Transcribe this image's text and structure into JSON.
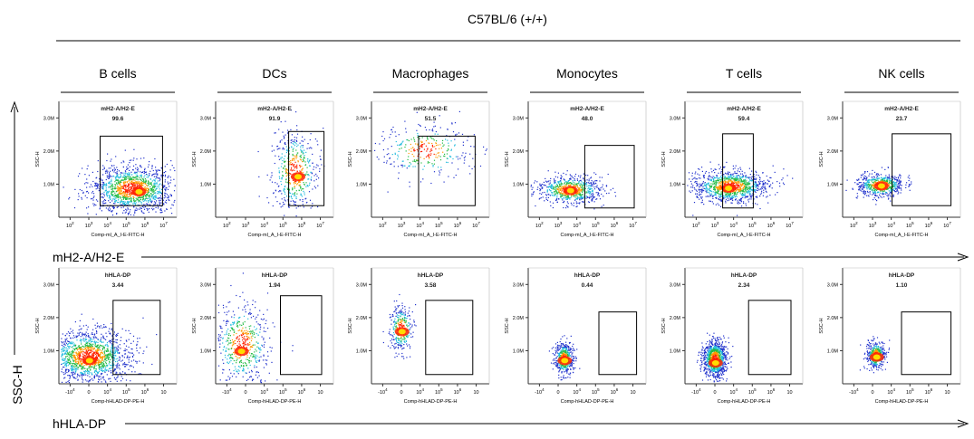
{
  "chart_data": {
    "type": "scatter",
    "title": "C57BL/6 (+/+)",
    "y_axis_label": "SSC-H",
    "cell_types": [
      "B cells",
      "DCs",
      "Macrophages",
      "Monocytes",
      "T cells",
      "NK cells"
    ],
    "rows": [
      {
        "row_label": "mH2-A/H2-E",
        "gate_label": "mH2-A/H2-E",
        "panel_xlabel": "Comp-ml_A_I-E-FITC-H",
        "panel_ylabel": "SSC-H",
        "xticks": [
          "10",
          "10",
          "10",
          "10",
          "10",
          "10"
        ],
        "xtick_exponents": [
          "2",
          "3",
          "4",
          "5",
          "6",
          "7"
        ],
        "yticks": [
          "1.0M",
          "2.0M",
          "3.0M"
        ],
        "gate_percent": [
          "99.6",
          "91.9",
          "51.5",
          "48.0",
          "59.4",
          "23.7"
        ]
      },
      {
        "row_label": "hHLA-DP",
        "gate_label": "hHLA-DP",
        "panel_xlabel": "Comp-hHLAD-DP-PE-H",
        "panel_ylabel": "SSC-H",
        "xticks": [
          "-10",
          "0",
          "10",
          "10",
          "10",
          "10"
        ],
        "xtick_exponents": [
          "4",
          "",
          "4",
          "5",
          "6",
          ""
        ],
        "yticks": [
          "1.0M",
          "2.0M",
          "3.0M"
        ],
        "gate_percent": [
          "3.44",
          "1.94",
          "3.58",
          "0.44",
          "2.34",
          "1.10"
        ]
      }
    ],
    "yrange": [
      0,
      3.5
    ],
    "yunit": "M",
    "colors": {
      "low": "#2233cc",
      "mid": "#22bb44",
      "high": "#ff2200"
    }
  }
}
